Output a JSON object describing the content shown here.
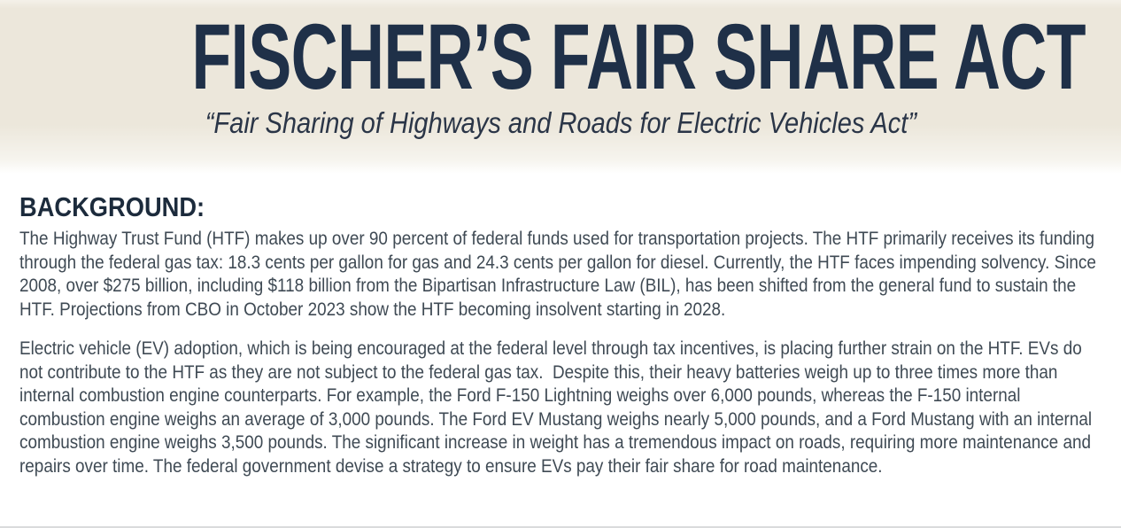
{
  "colors": {
    "header_background": "#ece7db",
    "title_navy": "#1f3048",
    "heading_navy": "#1c2b3c",
    "body_text": "#3f4a54",
    "page_background": "#ffffff",
    "bottom_divider": "#dadbdc"
  },
  "header": {
    "title": "FISCHER’S FAIR SHARE ACT",
    "subtitle": "“Fair Sharing of Highways and Roads for Electric Vehicles Act”"
  },
  "background_section": {
    "heading": "BACKGROUND:",
    "paragraphs": [
      "The Highway Trust Fund (HTF) makes up over 90 percent of federal funds used for transportation projects. The HTF primarily receives its funding through the federal gas tax: 18.3 cents per gallon for gas and 24.3 cents per gallon for diesel. Currently, the HTF faces impending solvency. Since 2008, over $275 billion, including $118 billion from the Bipartisan Infrastructure Law (BIL), has been shifted from the general fund to sustain the HTF. Projections from CBO in October 2023 show the HTF becoming insolvent starting in 2028.",
      "Electric vehicle (EV) adoption, which is being encouraged at the federal level through tax incentives, is placing further strain on the HTF. EVs do not contribute to the HTF as they are not subject to the federal gas tax.  Despite this, their heavy batteries weigh up to three times more than internal combustion engine counterparts. For example, the Ford F-150 Lightning weighs over 6,000 pounds, whereas the F-150 internal combustion engine weighs an average of 3,000 pounds. The Ford EV Mustang weighs nearly 5,000 pounds, and a Ford Mustang with an internal combustion engine weighs 3,500 pounds. The significant increase in weight has a tremendous impact on roads, requiring more maintenance and repairs over time. The federal government devise a strategy to ensure EVs pay their fair share for road maintenance."
    ]
  }
}
